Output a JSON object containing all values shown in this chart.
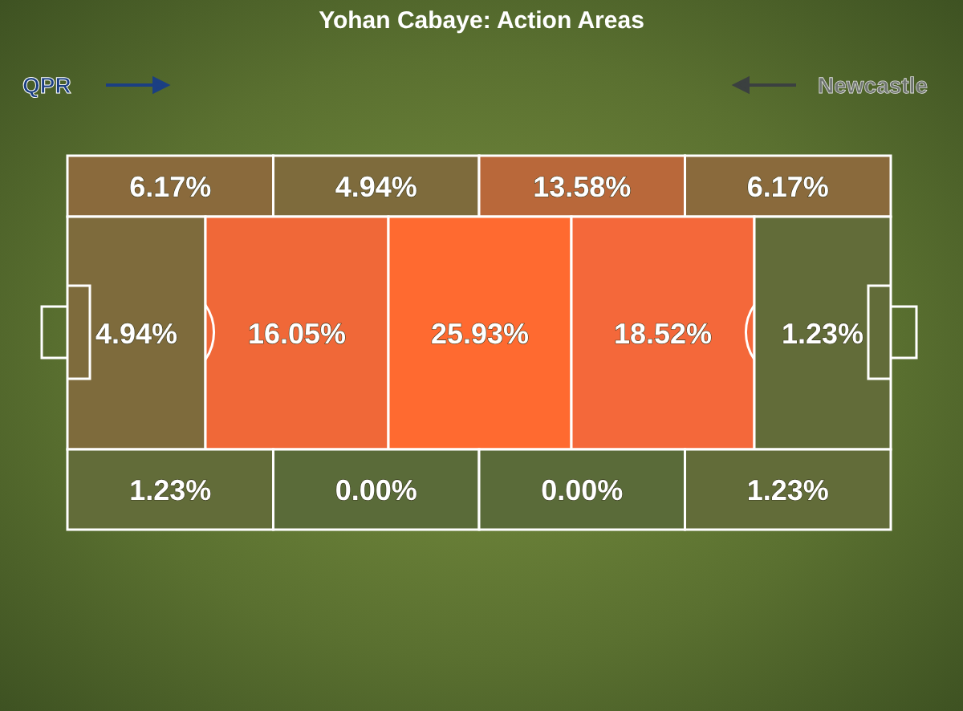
{
  "chart_data": {
    "type": "other",
    "title": "Yohan Cabaye: Action Areas",
    "annotations": [
      "QPR",
      "Newcastle"
    ],
    "values": [
      6.17,
      4.94,
      13.58,
      6.17,
      4.94,
      16.05,
      25.93,
      18.52,
      1.23,
      1.23,
      0.0,
      0.0,
      1.23
    ],
    "value_labels": [
      "6.17%",
      "4.94%",
      "13.58%",
      "6.17%",
      "4.94%",
      "16.05%",
      "25.93%",
      "18.52%",
      "1.23%",
      "1.23%",
      "0.00%",
      "0.00%",
      "1.23%"
    ],
    "colors": [
      "#8a6a3c",
      "#7e6b3c",
      "#b9683a",
      "#8a6a3c",
      "#7e6b3c",
      "#f06838",
      "#ff6a30",
      "#f4683a",
      "#626c39",
      "#626c39",
      "#5a6b39",
      "#5a6b39",
      "#626c39"
    ]
  }
}
